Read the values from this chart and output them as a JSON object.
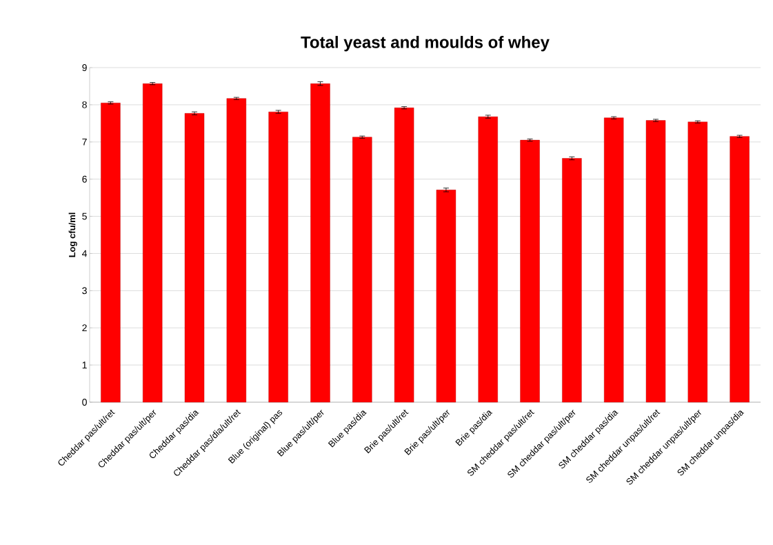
{
  "chart_data": {
    "type": "bar",
    "title": "Total yeast and moulds of whey",
    "ylabel": "Log cfu/ml",
    "categories": [
      "Cheddar pas/ult/ret",
      "Cheddar pas/ult/per",
      "Cheddar pas/dia",
      "Cheddar pas/dia/ult/ret",
      "Blue (original) pas",
      "Blue pas/ult/per",
      "Blue pas/dia",
      "Brie pas/ult/ret",
      "Brie pas/ult/per",
      "Brie pas/dia",
      "SM cheddar pas/ult/ret",
      "SM cheddar pas/ult/per",
      "SM cheddar pas/dia",
      "SM cheddar unpas/ult/ret",
      "SM cheddar unpas/ult/per",
      "SM cheddar unpas/dia"
    ],
    "values": [
      8.05,
      8.57,
      7.77,
      8.17,
      7.81,
      8.57,
      7.13,
      7.92,
      5.71,
      7.68,
      7.05,
      6.56,
      7.65,
      7.58,
      7.54,
      7.15
    ],
    "errors": [
      0.03,
      0.03,
      0.04,
      0.03,
      0.04,
      0.05,
      0.03,
      0.03,
      0.05,
      0.04,
      0.03,
      0.04,
      0.03,
      0.03,
      0.03,
      0.03
    ],
    "color": "#ff0000",
    "ylim": [
      0,
      9
    ],
    "yticks": [
      0,
      1,
      2,
      3,
      4,
      5,
      6,
      7,
      8,
      9
    ],
    "grid": "y"
  }
}
